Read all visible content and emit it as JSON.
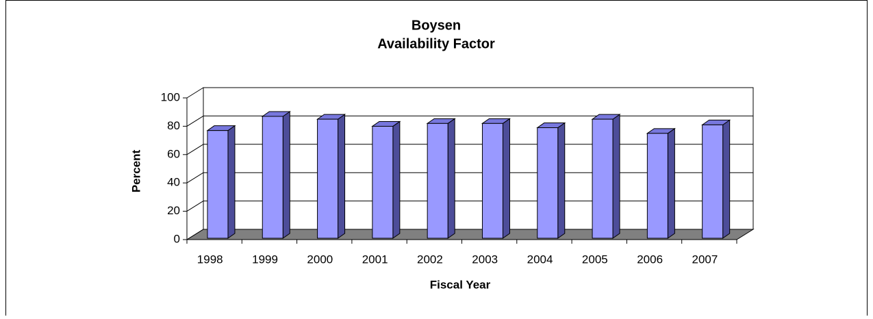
{
  "chart_data": {
    "type": "bar3d",
    "title": "Boysen",
    "subtitle": "Availability Factor",
    "x_label": "Fiscal Year",
    "y_label": "Percent",
    "categories": [
      "1998",
      "1999",
      "2000",
      "2001",
      "2002",
      "2003",
      "2004",
      "2005",
      "2006",
      "2007"
    ],
    "values": [
      76,
      86,
      84,
      79,
      81,
      81,
      78,
      84,
      74,
      80
    ],
    "color": "#9999ff",
    "ylim": [
      0,
      100
    ],
    "yticks": [
      0,
      20,
      40,
      60,
      80,
      100
    ],
    "grid": true
  }
}
